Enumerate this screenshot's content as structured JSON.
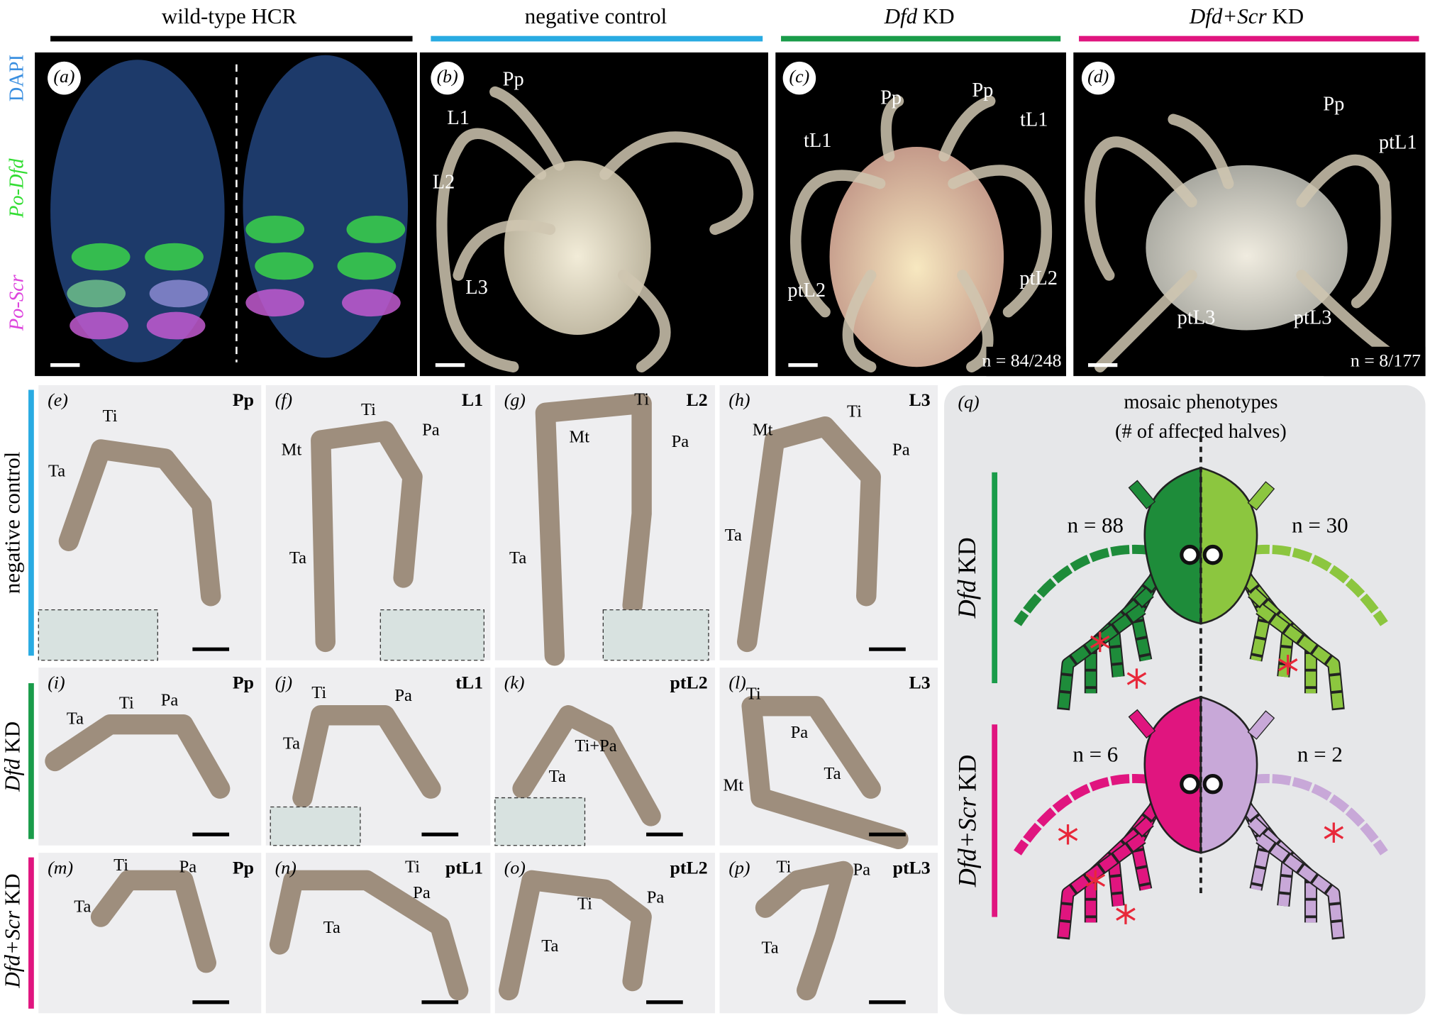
{
  "columns": [
    {
      "text": "wild-type HCR"
    },
    {
      "text": "negative control"
    },
    {
      "gene": "Dfd",
      "text": "KD"
    },
    {
      "gene": "Dfd+Scr",
      "text": "KD"
    }
  ],
  "panel_a": {
    "label": "(a)",
    "stains": [
      "DAPI",
      "Po-Dfd",
      "Po-Scr"
    ]
  },
  "panel_b": {
    "label": "(b)",
    "annotations": [
      "Pp",
      "L1",
      "L2",
      "L3"
    ]
  },
  "panel_c": {
    "label": "(c)",
    "annotations": [
      "Pp",
      "Pp",
      "tL1",
      "tL1",
      "ptL2",
      "ptL2"
    ],
    "count": "n = 84/248"
  },
  "panel_d": {
    "label": "(d)",
    "annotations": [
      "Pp",
      "ptL1",
      "ptL3",
      "ptL3"
    ],
    "count": "n = 8/177"
  },
  "rows": [
    {
      "text": "negative control"
    },
    {
      "gene": "Dfd",
      "text": "KD"
    },
    {
      "gene": "Dfd+Scr",
      "text": "KD"
    }
  ],
  "leg_panels": [
    {
      "label": "(e)",
      "name": "Pp",
      "annotations": [
        "Ti",
        "Ta"
      ]
    },
    {
      "label": "(f)",
      "name": "L1",
      "annotations": [
        "Ti",
        "Pa",
        "Mt",
        "Ta"
      ]
    },
    {
      "label": "(g)",
      "name": "L2",
      "annotations": [
        "Ti",
        "Mt",
        "Pa",
        "Ta"
      ]
    },
    {
      "label": "(h)",
      "name": "L3",
      "annotations": [
        "Ti",
        "Mt",
        "Pa",
        "Ta"
      ]
    },
    {
      "label": "(i)",
      "name": "Pp",
      "annotations": [
        "Ta",
        "Ti",
        "Pa"
      ]
    },
    {
      "label": "(j)",
      "name": "tL1",
      "annotations": [
        "Ti",
        "Pa",
        "Ta"
      ]
    },
    {
      "label": "(k)",
      "name": "ptL2",
      "annotations": [
        "Ti+Pa",
        "Ta"
      ]
    },
    {
      "label": "(l)",
      "name": "L3",
      "annotations": [
        "Ti",
        "Pa",
        "Mt",
        "Ta"
      ]
    },
    {
      "label": "(m)",
      "name": "Pp",
      "annotations": [
        "Ti",
        "Pa",
        "Ta"
      ]
    },
    {
      "label": "(n)",
      "name": "ptL1",
      "annotations": [
        "Ti",
        "Pa",
        "Ta"
      ]
    },
    {
      "label": "(o)",
      "name": "ptL2",
      "annotations": [
        "Ti",
        "Pa",
        "Ta"
      ]
    },
    {
      "label": "(p)",
      "name": "ptL3",
      "annotations": [
        "Ti",
        "Pa",
        "Ta"
      ]
    }
  ],
  "panel_q": {
    "label": "(q)",
    "title": "mosaic phenotypes",
    "subtitle": "(# of affected halves)",
    "groups": [
      {
        "gene": "Dfd",
        "text": "KD",
        "left": "n = 88",
        "right": "n = 30"
      },
      {
        "gene": "Dfd+Scr",
        "text": "KD",
        "left": "n = 6",
        "right": "n = 2"
      }
    ]
  }
}
